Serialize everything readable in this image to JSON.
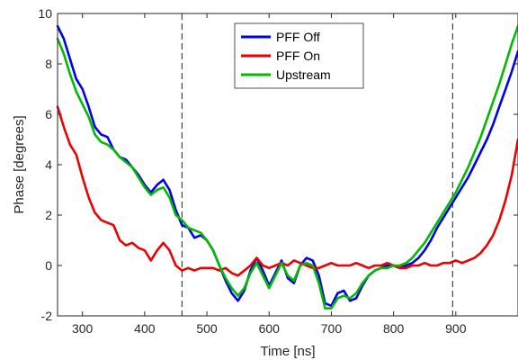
{
  "chart_data": {
    "type": "line",
    "xlabel": "Time [ns]",
    "ylabel": "Phase [degrees]",
    "xlim": [
      260,
      1000
    ],
    "ylim": [
      -2,
      10
    ],
    "xticks": [
      300,
      400,
      500,
      600,
      700,
      800,
      900
    ],
    "yticks": [
      -2,
      0,
      2,
      4,
      6,
      8,
      10
    ],
    "vlines": [
      460,
      895
    ],
    "legend_position": "top-center",
    "series": [
      {
        "name": "PFF Off",
        "color": "#0000ee",
        "x": [
          260,
          270,
          280,
          290,
          300,
          310,
          320,
          330,
          340,
          350,
          360,
          370,
          380,
          390,
          400,
          410,
          420,
          430,
          440,
          450,
          460,
          470,
          480,
          490,
          500,
          510,
          520,
          530,
          540,
          550,
          560,
          570,
          580,
          590,
          600,
          610,
          620,
          630,
          640,
          650,
          660,
          670,
          680,
          690,
          700,
          710,
          720,
          730,
          740,
          750,
          760,
          770,
          780,
          790,
          800,
          810,
          820,
          830,
          840,
          850,
          860,
          870,
          880,
          890,
          900,
          910,
          920,
          930,
          940,
          950,
          960,
          970,
          980,
          990,
          1000
        ],
        "y": [
          9.5,
          9.0,
          8.2,
          7.4,
          7.0,
          6.3,
          5.5,
          5.2,
          5.1,
          4.6,
          4.3,
          4.2,
          3.9,
          3.6,
          3.2,
          2.9,
          3.2,
          3.4,
          3.0,
          2.2,
          1.6,
          1.5,
          1.1,
          1.2,
          1.0,
          0.6,
          0.0,
          -0.6,
          -1.1,
          -1.4,
          -1.0,
          -0.2,
          0.3,
          -0.2,
          -0.8,
          -0.3,
          0.2,
          -0.5,
          -0.7,
          0.0,
          0.3,
          0.2,
          -0.4,
          -1.5,
          -1.6,
          -1.1,
          -1.0,
          -1.4,
          -1.3,
          -0.8,
          -0.4,
          -0.2,
          -0.1,
          0.0,
          0.0,
          -0.1,
          0.0,
          0.1,
          0.3,
          0.6,
          1.0,
          1.5,
          1.9,
          2.3,
          2.7,
          3.1,
          3.5,
          4.0,
          4.5,
          5.0,
          5.6,
          6.3,
          7.0,
          7.7,
          8.5
        ]
      },
      {
        "name": "PFF On",
        "color": "#ee0000",
        "x": [
          260,
          270,
          280,
          290,
          300,
          310,
          320,
          330,
          340,
          350,
          360,
          370,
          380,
          390,
          400,
          410,
          420,
          430,
          440,
          450,
          460,
          470,
          480,
          490,
          500,
          510,
          520,
          530,
          540,
          550,
          560,
          570,
          580,
          590,
          600,
          610,
          620,
          630,
          640,
          650,
          660,
          670,
          680,
          690,
          700,
          710,
          720,
          730,
          740,
          750,
          760,
          770,
          780,
          790,
          800,
          810,
          820,
          830,
          840,
          850,
          860,
          870,
          880,
          890,
          900,
          910,
          920,
          930,
          940,
          950,
          960,
          970,
          980,
          990,
          1000
        ],
        "y": [
          6.3,
          5.5,
          4.8,
          4.4,
          3.5,
          2.7,
          2.1,
          1.8,
          1.7,
          1.6,
          1.0,
          0.8,
          0.9,
          0.7,
          0.6,
          0.2,
          0.6,
          0.9,
          0.6,
          0.0,
          -0.2,
          -0.1,
          -0.2,
          -0.1,
          -0.1,
          -0.1,
          -0.2,
          -0.1,
          -0.3,
          -0.4,
          -0.2,
          0.0,
          0.3,
          0.0,
          -0.1,
          0.0,
          0.1,
          0.0,
          0.2,
          0.1,
          0.0,
          -0.1,
          -0.1,
          0.0,
          0.1,
          0.0,
          0.0,
          0.0,
          0.1,
          0.0,
          -0.1,
          0.0,
          0.0,
          0.1,
          0.0,
          -0.1,
          -0.1,
          0.0,
          0.0,
          0.1,
          0.0,
          0.0,
          0.1,
          0.1,
          0.2,
          0.1,
          0.2,
          0.3,
          0.5,
          0.8,
          1.2,
          1.8,
          2.6,
          3.6,
          5.0
        ]
      },
      {
        "name": "Upstream",
        "color": "#00bb00",
        "x": [
          260,
          270,
          280,
          290,
          300,
          310,
          320,
          330,
          340,
          350,
          360,
          370,
          380,
          390,
          400,
          410,
          420,
          430,
          440,
          450,
          460,
          470,
          480,
          490,
          500,
          510,
          520,
          530,
          540,
          550,
          560,
          570,
          580,
          590,
          600,
          610,
          620,
          630,
          640,
          650,
          660,
          670,
          680,
          690,
          700,
          710,
          720,
          730,
          740,
          750,
          760,
          770,
          780,
          790,
          800,
          810,
          820,
          830,
          840,
          850,
          860,
          870,
          880,
          890,
          900,
          910,
          920,
          930,
          940,
          950,
          960,
          970,
          980,
          990,
          1000
        ],
        "y": [
          9.0,
          8.4,
          7.6,
          6.9,
          6.4,
          5.9,
          5.2,
          4.9,
          4.8,
          4.6,
          4.3,
          4.1,
          3.9,
          3.5,
          3.1,
          2.8,
          3.0,
          3.1,
          2.7,
          2.0,
          1.8,
          1.5,
          1.4,
          1.3,
          1.0,
          0.6,
          0.0,
          -0.5,
          -0.9,
          -1.2,
          -0.9,
          -0.3,
          0.1,
          -0.4,
          -0.9,
          -0.4,
          0.1,
          -0.4,
          -0.6,
          0.0,
          0.1,
          0.0,
          -0.7,
          -1.7,
          -1.7,
          -1.3,
          -1.2,
          -1.3,
          -1.1,
          -0.7,
          -0.4,
          -0.2,
          -0.1,
          -0.1,
          0.0,
          0.0,
          0.1,
          0.3,
          0.6,
          0.9,
          1.3,
          1.7,
          2.1,
          2.5,
          2.9,
          3.4,
          3.9,
          4.5,
          5.1,
          5.8,
          6.5,
          7.2,
          8.0,
          8.8,
          9.5
        ]
      }
    ]
  }
}
